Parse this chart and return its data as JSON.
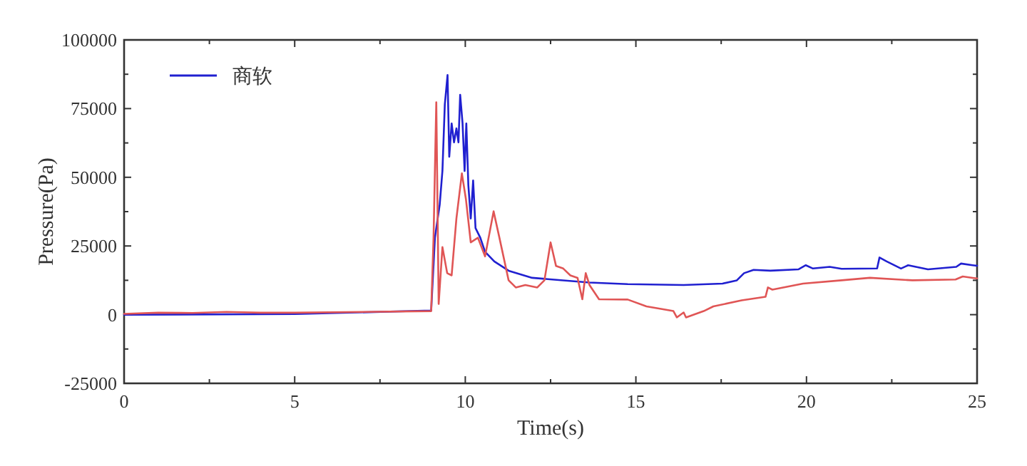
{
  "chart_data": {
    "type": "line",
    "xlabel": "Time(s)",
    "ylabel": "Pressure(Pa)",
    "xlim": [
      0,
      25
    ],
    "ylim": [
      -25000,
      100000
    ],
    "xticks": [
      0,
      {
        "value": 2.5,
        "label": null
      },
      5,
      {
        "value": 7.5,
        "label": null
      },
      10,
      {
        "value": 12.5,
        "label": null
      },
      15,
      {
        "value": 17.5,
        "label": null
      },
      20,
      {
        "value": 22.5,
        "label": null
      },
      25
    ],
    "yticks": [
      -25000,
      {
        "value": -12500,
        "label": null
      },
      0,
      {
        "value": 12500,
        "label": null
      },
      25000,
      {
        "value": 37500,
        "label": null
      },
      50000,
      {
        "value": 62500,
        "label": null
      },
      75000,
      {
        "value": 87500,
        "label": null
      },
      100000
    ],
    "grid": false,
    "legend": "top left",
    "line_style": "solid",
    "marker": "none",
    "series": [
      {
        "name": "商软",
        "color": "#2020d0",
        "x": [
          0,
          5,
          9,
          9.11,
          9.25,
          9.33,
          9.4,
          9.48,
          9.53,
          9.6,
          9.67,
          9.74,
          9.8,
          9.85,
          9.92,
          9.98,
          10.03,
          10.09,
          10.16,
          10.23,
          10.3,
          10.44,
          10.58,
          10.85,
          11.27,
          11.96,
          13.64,
          14.76,
          16.4,
          17.54,
          17.96,
          18.17,
          18.45,
          18.94,
          19.77,
          19.98,
          20.19,
          20.68,
          21.03,
          22.07,
          22.14,
          22.35,
          22.77,
          22.98,
          23.56,
          24.39,
          24.53,
          24.87,
          25
        ],
        "values": [
          0,
          200,
          1500,
          28000,
          40000,
          52300,
          76500,
          87200,
          57500,
          69600,
          62700,
          67800,
          62700,
          80000,
          69600,
          52300,
          69600,
          47100,
          35000,
          48800,
          31500,
          28000,
          22900,
          19400,
          16000,
          13400,
          11700,
          11100,
          10800,
          11300,
          12500,
          15100,
          16300,
          16000,
          16500,
          18000,
          16800,
          17400,
          16700,
          16800,
          20800,
          19400,
          16800,
          18000,
          16500,
          17400,
          18600,
          18000,
          17800
        ]
      },
      {
        "color": "#e05555",
        "x": [
          0,
          1,
          2,
          3,
          4,
          5,
          7,
          9,
          9.07,
          9.15,
          9.22,
          9.33,
          9.47,
          9.6,
          9.74,
          9.9,
          10.02,
          10.16,
          10.37,
          10.58,
          10.83,
          11.0,
          11.27,
          11.48,
          11.76,
          12.11,
          12.32,
          12.5,
          12.66,
          12.87,
          13.08,
          13.29,
          13.43,
          13.53,
          13.64,
          13.92,
          14.76,
          15.31,
          16.1,
          16.2,
          16.4,
          16.47,
          16.99,
          17.27,
          18.1,
          18.8,
          18.87,
          19.0,
          19.9,
          21.03,
          21.86,
          23.11,
          24.37,
          24.58,
          24.87,
          25
        ],
        "values": [
          300,
          700,
          600,
          1000,
          700,
          700,
          1000,
          1300,
          28000,
          77300,
          3900,
          24600,
          15100,
          14300,
          35000,
          51400,
          41900,
          26300,
          28000,
          21200,
          37600,
          28000,
          12500,
          9900,
          10800,
          9900,
          12500,
          26300,
          17700,
          16800,
          14300,
          13400,
          5600,
          15100,
          10800,
          5600,
          5500,
          3000,
          1300,
          -1000,
          800,
          -1000,
          1300,
          3000,
          5200,
          6500,
          9900,
          9100,
          11300,
          12500,
          13400,
          12500,
          12800,
          13900,
          13400,
          13200
        ]
      }
    ]
  }
}
